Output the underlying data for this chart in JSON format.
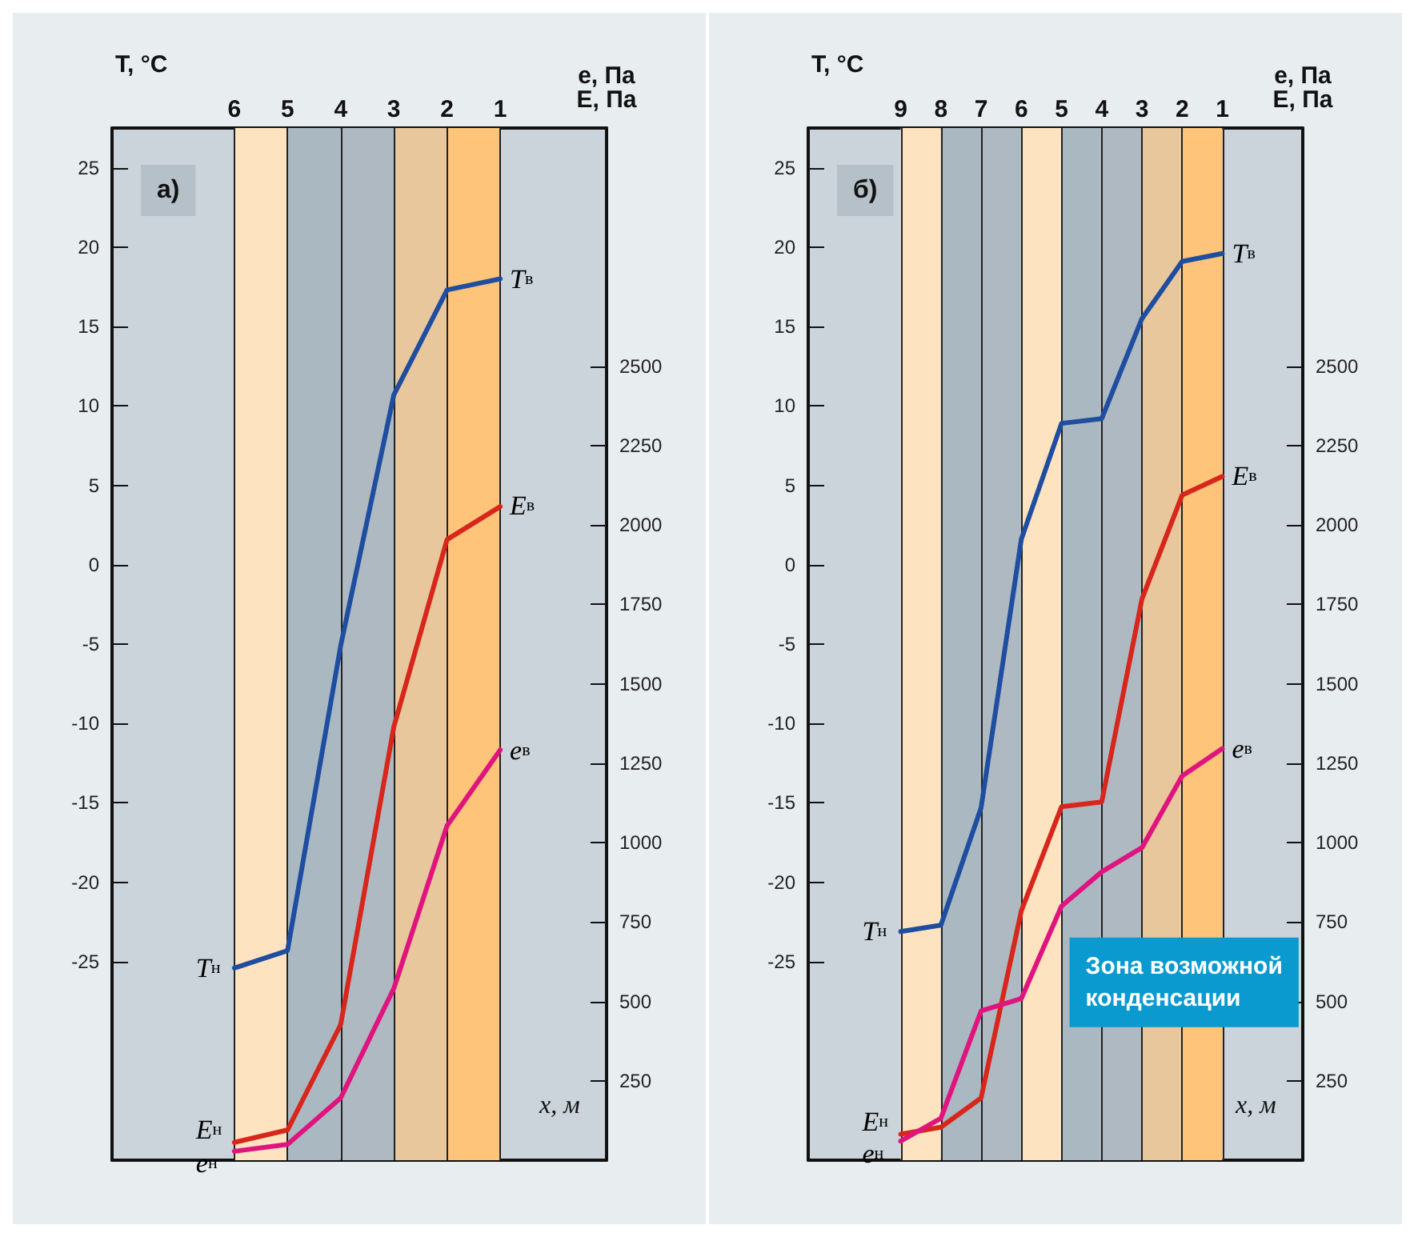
{
  "chart_data": [
    {
      "type": "line",
      "title": "а)",
      "xlabel": "x, м",
      "ylabel": "T, °C",
      "y2label": "e, Па\nE, Па",
      "categories": [
        "6",
        "5",
        "4",
        "3",
        "2",
        "1"
      ],
      "series": [
        {
          "color": "#1f4ea0",
          "values": [
            -25.4,
            -24.3,
            -5.1,
            10.7,
            17.3,
            18.0
          ]
        },
        {
          "color": "#d8261c",
          "axis": "y2",
          "values": [
            56,
            95,
            427,
            1365,
            1954,
            2058
          ]
        },
        {
          "color": "#e0147e",
          "axis": "y2",
          "values": [
            28,
            50,
            196,
            541,
            1053,
            1292
          ]
        }
      ],
      "y2lim": [
        0,
        3250
      ],
      "y2ticks": [
        250,
        500,
        750,
        1000,
        1250,
        1500,
        1750,
        2000,
        2250,
        2500
      ],
      "ylim": [
        -37.5,
        27.5
      ],
      "yticks": [
        -25,
        -20,
        -15,
        -10,
        -5,
        0,
        5,
        10,
        15,
        20,
        25
      ],
      "grid": "x",
      "bands": [
        {
          "axis": "x",
          "from": "6",
          "to": "5",
          "color": "#fde3c0"
        },
        {
          "axis": "x",
          "from": "5",
          "to": "4",
          "color": "#aab8c2"
        },
        {
          "axis": "x",
          "from": "4",
          "to": "3",
          "color": "#aeb9c1"
        },
        {
          "axis": "x",
          "from": "3",
          "to": "2",
          "color": "#e9c79c"
        },
        {
          "axis": "x",
          "from": "2",
          "to": "1",
          "color": "#fdc47a"
        }
      ],
      "annotations": [
        {
          "text": "T$_{н}$",
          "x": "6",
          "y": -25.4
        },
        {
          "text": "T$_{в}$",
          "x": "1",
          "y": 18.0
        },
        {
          "text": "E$_{в}$",
          "x": "1",
          "y": 3.7
        },
        {
          "text": "e$_{в}$",
          "x": "1",
          "y": -11.7
        },
        {
          "text": "E$_{н}$",
          "x": "6",
          "y": -36.4
        },
        {
          "text": "e$_{н}$",
          "x": "6",
          "y": -36.9
        }
      ]
    },
    {
      "type": "line",
      "title": "б)",
      "xlabel": "x, м",
      "ylabel": "T, °C",
      "y2label": "e, Па\nE, Па",
      "categories": [
        "9",
        "8",
        "7",
        "6",
        "5",
        "4",
        "3",
        "2",
        "1"
      ],
      "series": [
        {
          "color": "#1f4ea0",
          "values": [
            -23.1,
            -22.7,
            -15.3,
            1.6,
            8.9,
            9.2,
            15.5,
            19.1,
            19.6
          ]
        },
        {
          "color": "#d8261c",
          "axis": "y2",
          "values": [
            82,
            104,
            196,
            785,
            1113,
            1128,
            1767,
            2094,
            2153
          ]
        },
        {
          "color": "#e0147e",
          "axis": "y2",
          "values": [
            60,
            132,
            470,
            509,
            800,
            908,
            984,
            1210,
            1296
          ]
        }
      ],
      "y2lim": [
        0,
        3250
      ],
      "y2ticks": [
        250,
        500,
        750,
        1000,
        1250,
        1500,
        1750,
        2000,
        2250,
        2500
      ],
      "ylim": [
        -37.5,
        27.5
      ],
      "yticks": [
        -25,
        -20,
        -15,
        -10,
        -5,
        0,
        5,
        10,
        15,
        20,
        25
      ],
      "grid": "x",
      "bands": [
        {
          "axis": "x",
          "from": "9",
          "to": "8",
          "color": "#fde3c0"
        },
        {
          "axis": "x",
          "from": "8",
          "to": "7",
          "color": "#aab8c2"
        },
        {
          "axis": "x",
          "from": "7",
          "to": "6",
          "color": "#aeb9c1"
        },
        {
          "axis": "x",
          "from": "6",
          "to": "5",
          "color": "#fde3c0"
        },
        {
          "axis": "x",
          "from": "5",
          "to": "4",
          "color": "#aab8c2"
        },
        {
          "axis": "x",
          "from": "4",
          "to": "3",
          "color": "#aeb9c1"
        },
        {
          "axis": "x",
          "from": "3",
          "to": "2",
          "color": "#e9c79c"
        },
        {
          "axis": "x",
          "from": "2",
          "to": "1",
          "color": "#fdc47a"
        }
      ],
      "annotations": [
        {
          "text": "T$_{н}$",
          "x": "9",
          "y": -23.1
        },
        {
          "text": "T$_{в}$",
          "x": "1",
          "y": 19.6
        },
        {
          "text": "E$_{в}$",
          "x": "1",
          "y": 5.6
        },
        {
          "text": "e$_{в}$",
          "x": "1",
          "y": -11.6
        },
        {
          "text": "E$_{н}$",
          "x": "9",
          "y": -35.9
        },
        {
          "text": "e$_{н}$",
          "x": "9",
          "y": -36.3
        },
        "Зона возможной\nконденсации"
      ]
    }
  ]
}
